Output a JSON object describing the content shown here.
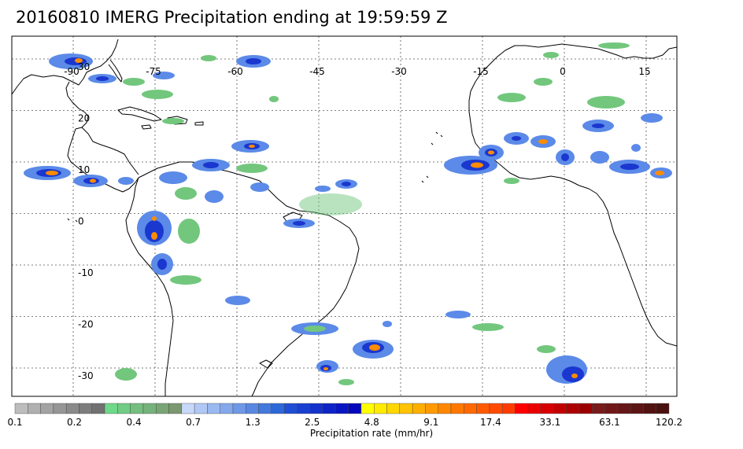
{
  "title": "20160810 IMERG Precipitation ending at 19:59:59 Z",
  "map": {
    "lon_labels": [
      "-90",
      "-75",
      "-60",
      "-45",
      "-30",
      "-15",
      "0",
      "15"
    ],
    "lat_labels": [
      "30",
      "20",
      "10",
      "0",
      "-10",
      "-20",
      "-30"
    ],
    "lon_values": [
      -90,
      -75,
      -60,
      -45,
      -30,
      -15,
      0,
      15
    ],
    "lat_values": [
      30,
      20,
      10,
      0,
      -10,
      -20,
      -30
    ],
    "gridlines": "dotted",
    "land_color": "#ffffff",
    "coast_color": "#000000"
  },
  "colorbar": {
    "label": "Precipitation rate (mm/hr)",
    "tick_labels": [
      "0.1",
      "0.2",
      "0.4",
      "0.7",
      "1.3",
      "2.5",
      "4.8",
      "9.1",
      "17.4",
      "33.1",
      "63.1",
      "120.2"
    ],
    "colors": [
      "#bdbdbd",
      "#b0b0b0",
      "#a3a3a3",
      "#969696",
      "#8a8a8a",
      "#7d7d7d",
      "#717171",
      "#6fd98a",
      "#71cc85",
      "#74bf80",
      "#76b27b",
      "#79a576",
      "#7c9871",
      "#c7d8fb",
      "#b1c8f6",
      "#9bb8f1",
      "#85a8ec",
      "#6f98e7",
      "#5988e2",
      "#4378dd",
      "#2d68d8",
      "#1f4ed6",
      "#1a40d1",
      "#1432cc",
      "#0e24c7",
      "#0816c2",
      "#0308bd",
      "#ffff00",
      "#ffeb00",
      "#ffd700",
      "#ffc300",
      "#ffaf00",
      "#ff9b00",
      "#ff8700",
      "#ff7800",
      "#ff6900",
      "#ff5a00",
      "#ff4b00",
      "#ff3c00",
      "#ff0000",
      "#eb0000",
      "#d70000",
      "#c30000",
      "#af0000",
      "#9b0000",
      "#7a1a1a",
      "#701818",
      "#661616",
      "#5c1414",
      "#521212",
      "#4a1010"
    ]
  },
  "legend_colors": {
    "light_rain": "#72c77d",
    "moderate_rain": "#5b8ae8",
    "heavy_rain": "#1a37cf",
    "intense_rain": "#ff8c00",
    "extreme_rain": "#ff2a00"
  }
}
